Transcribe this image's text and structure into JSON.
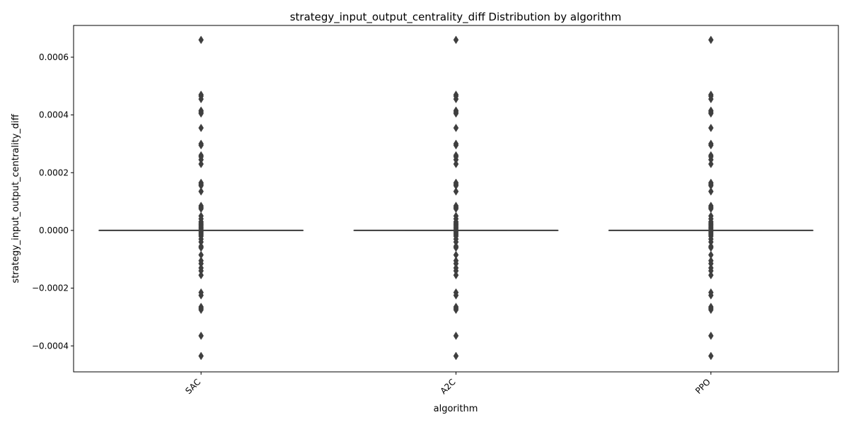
{
  "chart_data": {
    "type": "box",
    "title": "strategy_input_output_centrality_diff Distribution by algorithm",
    "xlabel": "algorithm",
    "ylabel": "strategy_input_output_centrality_diff",
    "categories": [
      "SAC",
      "A2C",
      "PPO"
    ],
    "ylim": [
      -0.00049,
      0.00071
    ],
    "yticks": [
      -0.0004,
      -0.0002,
      0.0,
      0.0002,
      0.0004,
      0.0006
    ],
    "ytick_labels": [
      "−0.0004",
      "−0.0002",
      "0.0000",
      "0.0002",
      "0.0004",
      "0.0006"
    ],
    "grid": false,
    "series": [
      {
        "category": "SAC",
        "q1": 0.0,
        "median": 0.0,
        "q3": 0.0,
        "whisker_low": 0.0,
        "whisker_high": 0.0,
        "outliers": [
          0.00066,
          0.00047,
          0.000465,
          0.000455,
          0.000415,
          0.00041,
          0.000405,
          0.000355,
          0.0003,
          0.000295,
          0.00026,
          0.000255,
          0.000245,
          0.00023,
          0.000165,
          0.00016,
          0.000155,
          0.000135,
          8.5e-05,
          8e-05,
          7.5e-05,
          5e-05,
          4e-05,
          3e-05,
          2.5e-05,
          2e-05,
          1.5e-05,
          1e-05,
          5e-06,
          -5e-06,
          -1e-05,
          -1.5e-05,
          -2e-05,
          -3e-05,
          -4e-05,
          -5.5e-05,
          -6e-05,
          -8.5e-05,
          -0.000105,
          -0.000115,
          -0.00013,
          -0.00014,
          -0.000155,
          -0.000215,
          -0.000225,
          -0.000265,
          -0.00027,
          -0.000275,
          -0.000365,
          -0.000435
        ]
      },
      {
        "category": "A2C",
        "q1": 0.0,
        "median": 0.0,
        "q3": 0.0,
        "whisker_low": 0.0,
        "whisker_high": 0.0,
        "outliers": [
          0.00066,
          0.00047,
          0.000465,
          0.000455,
          0.000415,
          0.00041,
          0.000405,
          0.000355,
          0.0003,
          0.000295,
          0.00026,
          0.000255,
          0.000245,
          0.00023,
          0.000165,
          0.00016,
          0.000155,
          0.000135,
          8.5e-05,
          8e-05,
          7.5e-05,
          5e-05,
          4e-05,
          3e-05,
          2.5e-05,
          2e-05,
          1.5e-05,
          1e-05,
          5e-06,
          -5e-06,
          -1e-05,
          -1.5e-05,
          -2e-05,
          -3e-05,
          -4e-05,
          -5.5e-05,
          -6e-05,
          -8.5e-05,
          -0.000105,
          -0.000115,
          -0.00013,
          -0.00014,
          -0.000155,
          -0.000215,
          -0.000225,
          -0.000265,
          -0.00027,
          -0.000275,
          -0.000365,
          -0.000435
        ]
      },
      {
        "category": "PPO",
        "q1": 0.0,
        "median": 0.0,
        "q3": 0.0,
        "whisker_low": 0.0,
        "whisker_high": 0.0,
        "outliers": [
          0.00066,
          0.00047,
          0.000465,
          0.000455,
          0.000415,
          0.00041,
          0.000405,
          0.000355,
          0.0003,
          0.000295,
          0.00026,
          0.000255,
          0.000245,
          0.00023,
          0.000165,
          0.00016,
          0.000155,
          0.000135,
          8.5e-05,
          8e-05,
          7.5e-05,
          5e-05,
          4e-05,
          3e-05,
          2.5e-05,
          2e-05,
          1.5e-05,
          1e-05,
          5e-06,
          -5e-06,
          -1e-05,
          -1.5e-05,
          -2e-05,
          -3e-05,
          -4e-05,
          -5.5e-05,
          -6e-05,
          -8.5e-05,
          -0.000105,
          -0.000115,
          -0.00013,
          -0.00014,
          -0.000155,
          -0.000215,
          -0.000225,
          -0.000265,
          -0.00027,
          -0.000275,
          -0.000365,
          -0.000435
        ]
      }
    ],
    "colors": {
      "box_edge": "#3f3f3f",
      "outlier_fill": "#3f3f3f",
      "axis": "#000000"
    }
  }
}
